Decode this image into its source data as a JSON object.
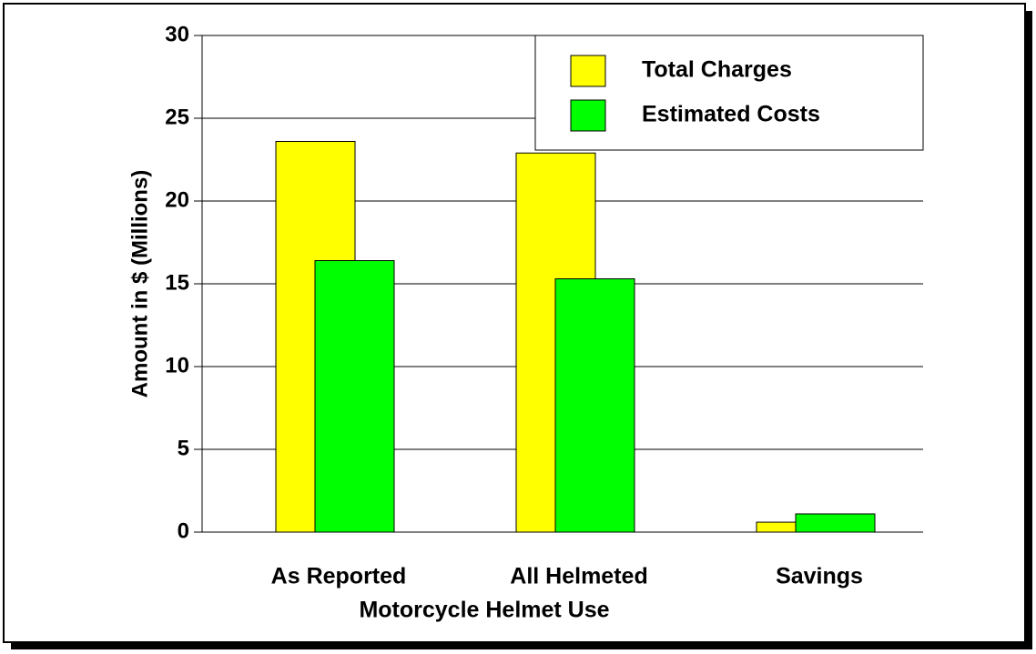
{
  "chart_data": {
    "type": "bar",
    "categories": [
      "As Reported",
      "All Helmeted",
      "Savings"
    ],
    "series": [
      {
        "name": "Total Charges",
        "color": "#ffff00",
        "values": [
          23.6,
          22.9,
          0.6
        ]
      },
      {
        "name": "Estimated Costs",
        "color": "#00ff00",
        "values": [
          16.4,
          15.3,
          1.1
        ]
      }
    ],
    "xlabel": "Motorcycle Helmet Use",
    "ylabel": "Amount in $ (Millions)",
    "ylim": [
      0,
      30
    ],
    "yticks": [
      0,
      5,
      10,
      15,
      20,
      25,
      30
    ],
    "grid": true,
    "legend": "upper right"
  }
}
